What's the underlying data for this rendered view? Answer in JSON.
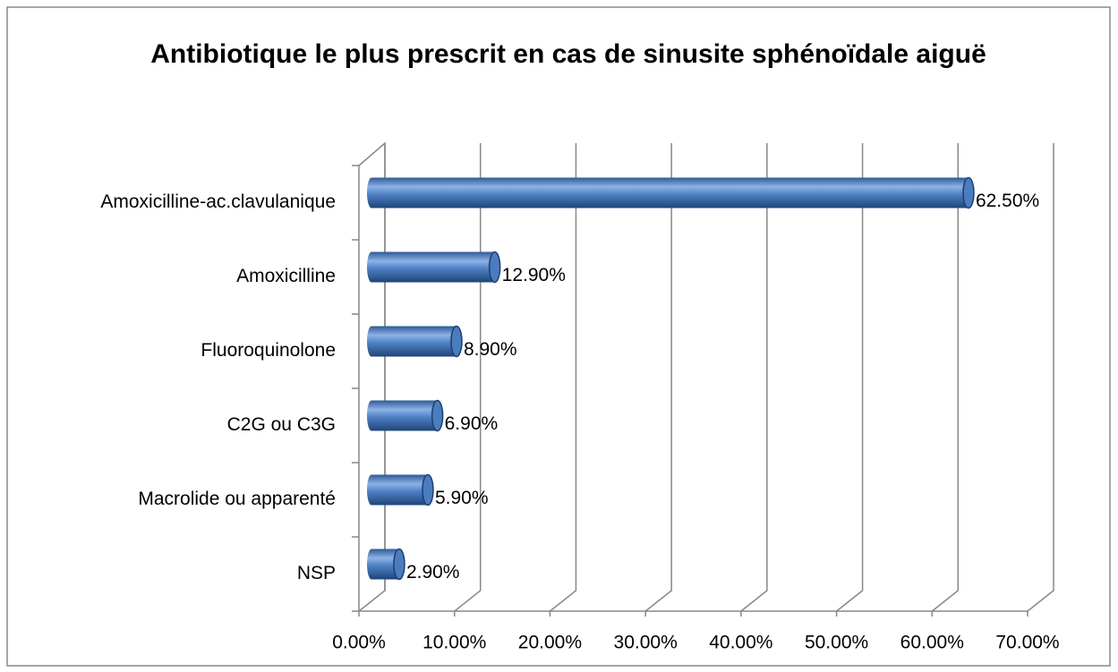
{
  "chart_data": {
    "type": "bar3d-horizontal",
    "title": "Antibiotique le plus prescrit en cas de sinusite sphénoïdale aiguë",
    "categories": [
      "Amoxicilline-ac.clavulanique",
      "Amoxicilline",
      "Fluoroquinolone",
      "C2G ou C3G",
      "Macrolide ou apparenté",
      "NSP"
    ],
    "values": [
      62.5,
      12.9,
      8.9,
      6.9,
      5.9,
      2.9
    ],
    "value_labels": [
      "62.50%",
      "12.90%",
      "8.90%",
      "6.90%",
      "5.90%",
      "2.90%"
    ],
    "color": "#4a7cc0",
    "xlim": [
      0,
      70
    ],
    "xticks": [
      {
        "value": 0,
        "label": "0.00%"
      },
      {
        "value": 10,
        "label": "10.00%"
      },
      {
        "value": 20,
        "label": "20.00%"
      },
      {
        "value": 30,
        "label": "30.00%"
      },
      {
        "value": 40,
        "label": "40.00%"
      },
      {
        "value": 50,
        "label": "50.00%"
      },
      {
        "value": 60,
        "label": "60.00%"
      },
      {
        "value": 70,
        "label": "70.00%"
      }
    ],
    "grid": true
  }
}
